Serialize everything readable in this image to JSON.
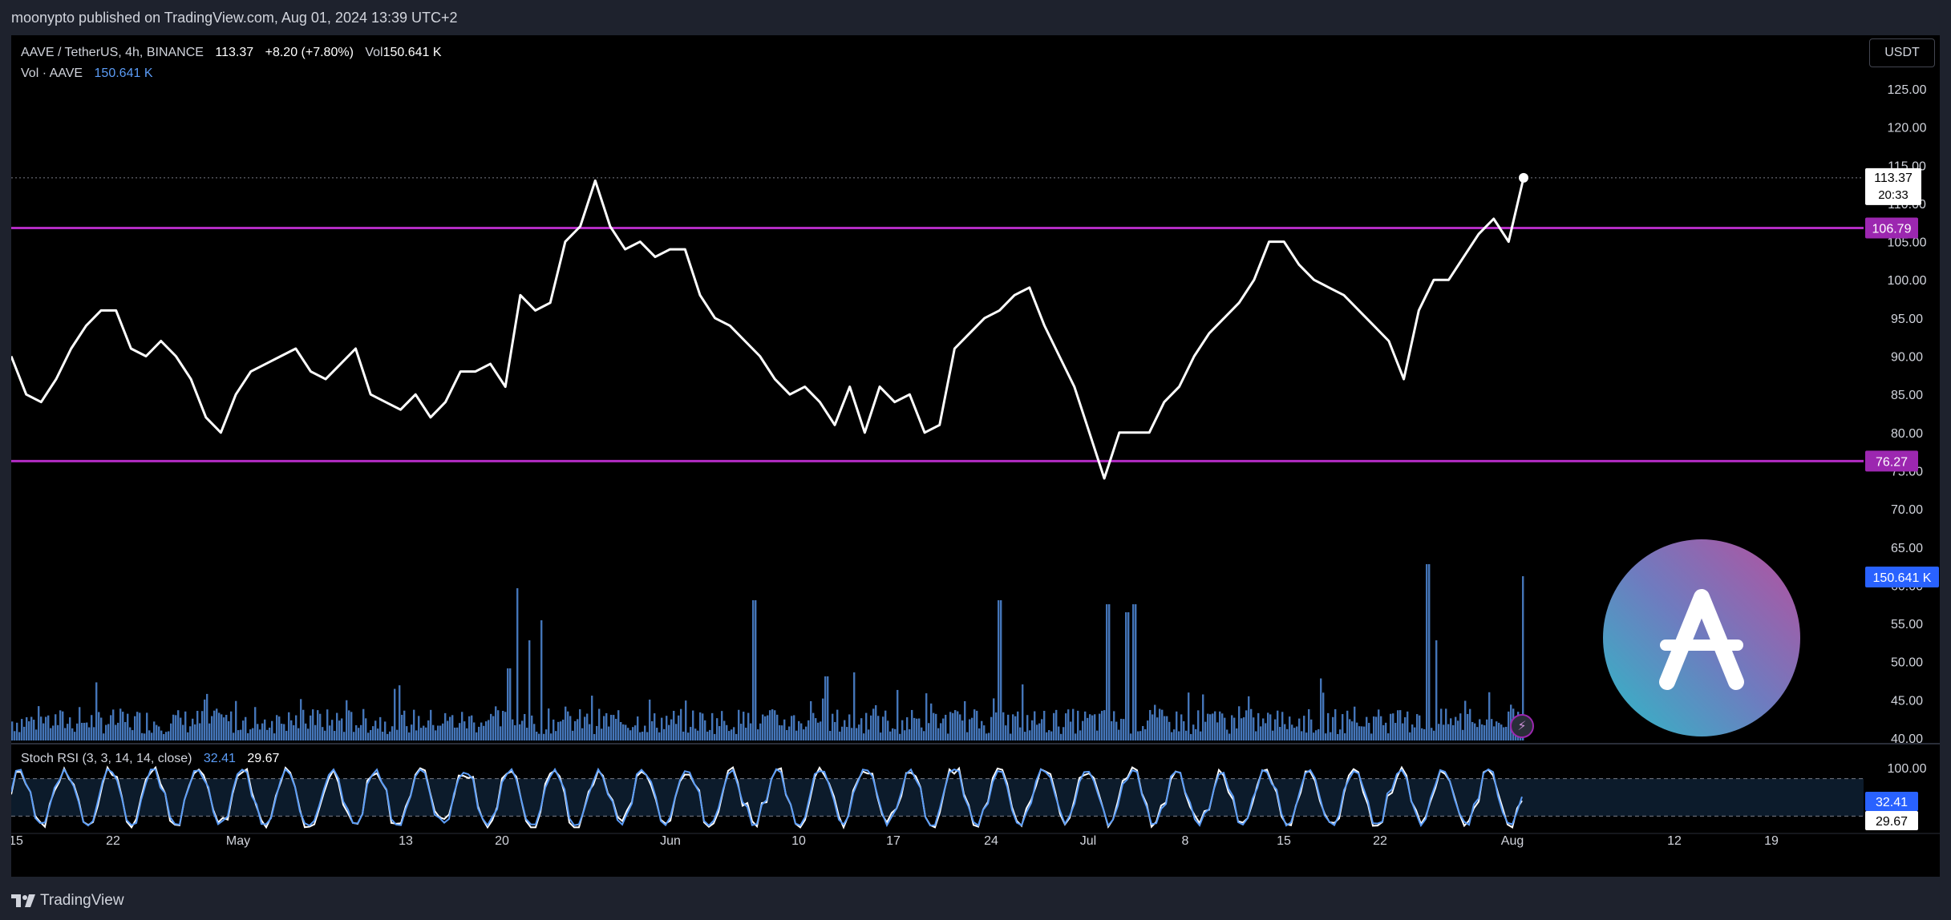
{
  "header": {
    "published_by": "moonypto published on TradingView.com, Aug 01, 2024 13:39 UTC+2"
  },
  "footer": {
    "brand": "TradingView"
  },
  "legend": {
    "symbol": "AAVE / TetherUS, 4h, BINANCE",
    "price": "113.37",
    "change": "+8.20 (+7.80%)",
    "vol_label": "Vol",
    "vol_value": "150.641 K",
    "vol_line_label": "Vol · AAVE",
    "vol_line_value": "150.641 K"
  },
  "rsi_legend": {
    "label": "Stoch RSI (3, 3, 14, 14, close)",
    "k_value": "32.41",
    "d_value": "29.67"
  },
  "currency_button": "USDT",
  "icons": {
    "bolt": "bolt-icon",
    "logo": "aave-logo-icon",
    "tradingview": "tradingview-logo-icon"
  },
  "colors": {
    "price_line": "#ffffff",
    "level_line": "#b32cc4",
    "volume": "#5b9cf6",
    "rsi_k": "#5b9cf6",
    "rsi_d": "#ffffff",
    "background": "#000000"
  },
  "chart_data": {
    "type": "line",
    "symbol": "AAVE / TetherUS",
    "timeframe": "4h",
    "exchange": "BINANCE",
    "x_tick_labels": [
      "15",
      "22",
      "May",
      "13",
      "20",
      "Jun",
      "10",
      "17",
      "24",
      "Jul",
      "8",
      "15",
      "22",
      "Aug",
      "12",
      "19"
    ],
    "y_tick_labels": [
      "125.00",
      "120.00",
      "115.00",
      "110.00",
      "105.00",
      "100.00",
      "95.00",
      "90.00",
      "85.00",
      "80.00",
      "75.00",
      "70.00",
      "65.00",
      "60.00",
      "55.00",
      "50.00",
      "45.00",
      "40.00"
    ],
    "ylim": [
      40,
      125
    ],
    "price_points": [
      [
        "Apr 15",
        90
      ],
      [
        "Apr 17",
        85
      ],
      [
        "Apr 19",
        84
      ],
      [
        "Apr 21",
        87
      ],
      [
        "Apr 23",
        91
      ],
      [
        "Apr 24",
        94
      ],
      [
        "Apr 25",
        96
      ],
      [
        "Apr 26",
        96
      ],
      [
        "Apr 27",
        91
      ],
      [
        "Apr 29",
        90
      ],
      [
        "May 1",
        92
      ],
      [
        "May 2",
        90
      ],
      [
        "May 3",
        87
      ],
      [
        "May 4",
        82
      ],
      [
        "May 5",
        80
      ],
      [
        "May 6",
        85
      ],
      [
        "May 7",
        88
      ],
      [
        "May 8",
        89
      ],
      [
        "May 9",
        90
      ],
      [
        "May 10",
        91
      ],
      [
        "May 11",
        88
      ],
      [
        "May 12",
        87
      ],
      [
        "May 13",
        89
      ],
      [
        "May 14",
        91
      ],
      [
        "May 15",
        85
      ],
      [
        "May 16",
        84
      ],
      [
        "May 17",
        83
      ],
      [
        "May 18",
        85
      ],
      [
        "May 19",
        82
      ],
      [
        "May 20",
        84
      ],
      [
        "May 21",
        88
      ],
      [
        "May 22",
        88
      ],
      [
        "May 23",
        89
      ],
      [
        "May 25",
        86
      ],
      [
        "May 26",
        98
      ],
      [
        "May 27",
        96
      ],
      [
        "May 28",
        97
      ],
      [
        "May 29",
        105
      ],
      [
        "May 30",
        107
      ],
      [
        "May 31",
        113
      ],
      [
        "Jun 1",
        107
      ],
      [
        "Jun 2",
        104
      ],
      [
        "Jun 4",
        105
      ],
      [
        "Jun 6",
        103
      ],
      [
        "Jun 8",
        104
      ],
      [
        "Jun 10",
        104
      ],
      [
        "Jun 11",
        98
      ],
      [
        "Jun 12",
        95
      ],
      [
        "Jun 13",
        94
      ],
      [
        "Jun 14",
        92
      ],
      [
        "Jun 15",
        90
      ],
      [
        "Jun 16",
        87
      ],
      [
        "Jun 17",
        85
      ],
      [
        "Jun 18",
        86
      ],
      [
        "Jun 19",
        84
      ],
      [
        "Jun 20",
        81
      ],
      [
        "Jun 21",
        86
      ],
      [
        "Jun 23",
        80
      ],
      [
        "Jun 25",
        86
      ],
      [
        "Jun 26",
        84
      ],
      [
        "Jun 27",
        85
      ],
      [
        "Jun 28",
        80
      ],
      [
        "Jun 29",
        81
      ],
      [
        "Jun 30",
        91
      ],
      [
        "Jul 1",
        93
      ],
      [
        "Jul 2",
        95
      ],
      [
        "Jul 3",
        96
      ],
      [
        "Jul 4",
        98
      ],
      [
        "Jul 5",
        99
      ],
      [
        "Jul 6",
        94
      ],
      [
        "Jul 7",
        90
      ],
      [
        "Jul 8",
        86
      ],
      [
        "Jul 9",
        80
      ],
      [
        "Jul 10",
        74
      ],
      [
        "Jul 11",
        80
      ],
      [
        "Jul 12",
        80
      ],
      [
        "Jul 13",
        80
      ],
      [
        "Jul 14",
        84
      ],
      [
        "Jul 15",
        86
      ],
      [
        "Jul 16",
        90
      ],
      [
        "Jul 17",
        93
      ],
      [
        "Jul 18",
        95
      ],
      [
        "Jul 19",
        97
      ],
      [
        "Jul 20",
        100
      ],
      [
        "Jul 21",
        105
      ],
      [
        "Jul 22",
        105
      ],
      [
        "Jul 23",
        102
      ],
      [
        "Jul 24",
        100
      ],
      [
        "Jul 25",
        99
      ],
      [
        "Jul 26",
        98
      ],
      [
        "Jul 27",
        96
      ],
      [
        "Jul 28",
        94
      ],
      [
        "Jul 29",
        92
      ],
      [
        "Jul 30",
        87
      ],
      [
        "Jul 31",
        96
      ],
      [
        "Aug 1",
        100
      ],
      [
        "Aug 2",
        100
      ],
      [
        "Aug 3",
        103
      ],
      [
        "Aug 4",
        106
      ],
      [
        "Aug 5",
        108
      ],
      [
        "Aug 6",
        105
      ],
      [
        "Aug 7",
        113.37
      ]
    ],
    "horizontal_levels": [
      106.79,
      76.27
    ],
    "level_labels": [
      "106.79",
      "76.27"
    ],
    "last_price_label": "113.37",
    "countdown_label": "20:33",
    "volume_label": "150.641 K",
    "stoch_rsi": {
      "label": "Stoch RSI (3, 3, 14, 14, close)",
      "k_last": 32.41,
      "d_last": 29.67,
      "ylim": [
        0,
        100
      ],
      "upper_band": 80,
      "lower_band": 20,
      "tick_label": "100.00"
    },
    "grid": false
  }
}
